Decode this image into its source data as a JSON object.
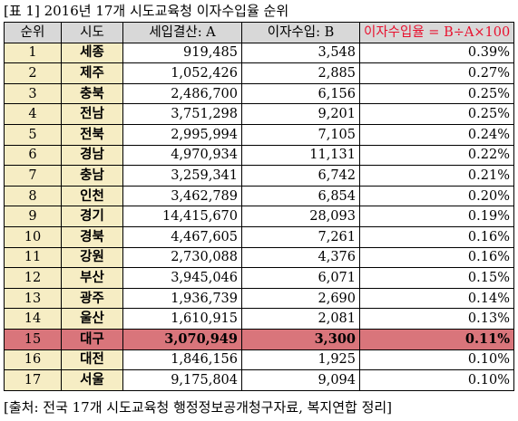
{
  "caption": "[표 1] 2016년 17개 시도교육청 이자수입율 순위",
  "headers": {
    "rank": "순위",
    "region": "시도",
    "budget": "세입결산: A",
    "interest": "이자수입: B",
    "rate": "이자수입율 = B÷A×100"
  },
  "rows": [
    {
      "rank": "1",
      "region": "세종",
      "budget": "919,485",
      "interest": "3,548",
      "rate": "0.39%"
    },
    {
      "rank": "2",
      "region": "제주",
      "budget": "1,052,426",
      "interest": "2,885",
      "rate": "0.27%"
    },
    {
      "rank": "3",
      "region": "충북",
      "budget": "2,486,700",
      "interest": "6,156",
      "rate": "0.25%"
    },
    {
      "rank": "4",
      "region": "전남",
      "budget": "3,751,298",
      "interest": "9,201",
      "rate": "0.25%"
    },
    {
      "rank": "5",
      "region": "전북",
      "budget": "2,995,994",
      "interest": "7,105",
      "rate": "0.24%"
    },
    {
      "rank": "6",
      "region": "경남",
      "budget": "4,970,934",
      "interest": "11,131",
      "rate": "0.22%"
    },
    {
      "rank": "7",
      "region": "충남",
      "budget": "3,259,341",
      "interest": "6,742",
      "rate": "0.21%"
    },
    {
      "rank": "8",
      "region": "인천",
      "budget": "3,462,789",
      "interest": "6,854",
      "rate": "0.20%"
    },
    {
      "rank": "9",
      "region": "경기",
      "budget": "14,415,670",
      "interest": "28,093",
      "rate": "0.19%"
    },
    {
      "rank": "10",
      "region": "경북",
      "budget": "4,467,605",
      "interest": "7,261",
      "rate": "0.16%"
    },
    {
      "rank": "11",
      "region": "강원",
      "budget": "2,730,088",
      "interest": "4,376",
      "rate": "0.16%"
    },
    {
      "rank": "12",
      "region": "부산",
      "budget": "3,945,046",
      "interest": "6,071",
      "rate": "0.15%"
    },
    {
      "rank": "13",
      "region": "광주",
      "budget": "1,936,739",
      "interest": "2,690",
      "rate": "0.14%"
    },
    {
      "rank": "14",
      "region": "울산",
      "budget": "1,610,915",
      "interest": "2,081",
      "rate": "0.13%"
    },
    {
      "rank": "15",
      "region": "대구",
      "budget": "3,070,949",
      "interest": "3,300",
      "rate": "0.11%",
      "highlight": true
    },
    {
      "rank": "16",
      "region": "대전",
      "budget": "1,846,156",
      "interest": "1,925",
      "rate": "0.10%"
    },
    {
      "rank": "17",
      "region": "서울",
      "budget": "9,175,804",
      "interest": "9,094",
      "rate": "0.10%"
    }
  ],
  "source": "[출처: 전국 17개 시도교육청 행정정보공개청구자료, 복지연합 정리]",
  "colors": {
    "header_bg": "#d8d8d8",
    "label_bg": "#f6edc4",
    "highlight_bg": "#d9757b",
    "rate_header_text": "#e8102e"
  }
}
